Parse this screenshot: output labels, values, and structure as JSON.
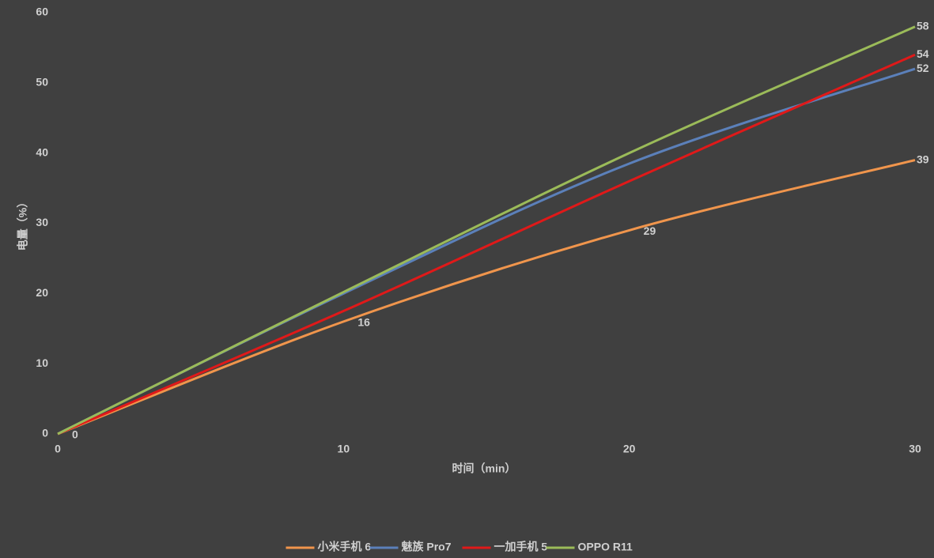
{
  "chart_data": {
    "type": "line",
    "x_label": "时间（min）",
    "y_label": "电量（%）",
    "x": [
      0,
      10,
      20,
      30
    ],
    "xlim": [
      0,
      30
    ],
    "xticks": [
      0,
      10,
      20,
      30
    ],
    "ylim": [
      0,
      60
    ],
    "yticks": [
      0,
      10,
      20,
      30,
      40,
      50,
      60
    ],
    "grid": false,
    "legend": "bottom",
    "smooth": true,
    "series": [
      {
        "name": "小米手机 6",
        "color": "#f0954c",
        "values": [
          0,
          16,
          29,
          39
        ],
        "value_labels": [
          0,
          16,
          29,
          39
        ]
      },
      {
        "name": "魅族 Pro7",
        "color": "#5b80ba",
        "values": [
          0,
          20,
          38.5,
          52
        ],
        "value_labels": [
          null,
          null,
          null,
          52
        ]
      },
      {
        "name": "一加手机 5",
        "color": "#e01919",
        "values": [
          0,
          17.5,
          36,
          54
        ],
        "value_labels": [
          null,
          null,
          null,
          54
        ]
      },
      {
        "name": "OPPO R11",
        "color": "#9bbb59",
        "values": [
          0,
          20.2,
          40,
          58
        ],
        "value_labels": [
          null,
          null,
          null,
          58
        ]
      }
    ]
  }
}
